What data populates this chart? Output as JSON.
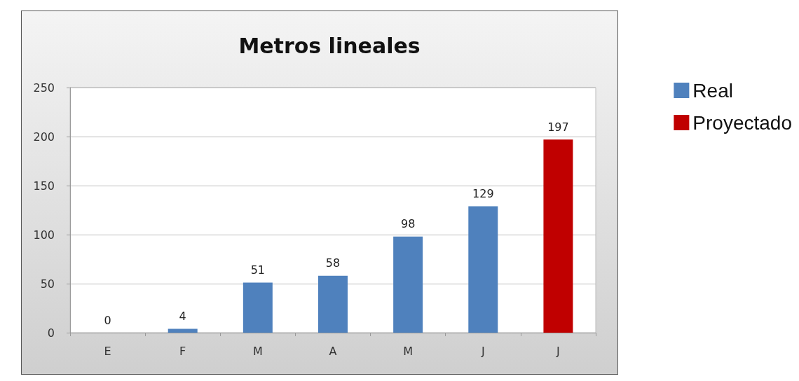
{
  "chart_data": {
    "type": "bar",
    "title": "Metros lineales",
    "categories": [
      "E",
      "F",
      "M",
      "A",
      "M",
      "J",
      "J"
    ],
    "series": [
      {
        "name": "Real",
        "color": "#4f81bd",
        "values": [
          0,
          4,
          51,
          58,
          98,
          129,
          null
        ]
      },
      {
        "name": "Proyectado",
        "color": "#c00000",
        "values": [
          null,
          null,
          null,
          null,
          null,
          null,
          197
        ]
      }
    ],
    "ylim": [
      0,
      250
    ],
    "yticks": [
      0,
      50,
      100,
      150,
      200,
      250
    ],
    "grid": "y",
    "legend": "right",
    "data_labels": true
  }
}
